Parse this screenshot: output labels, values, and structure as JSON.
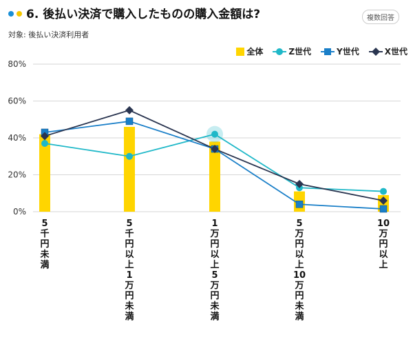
{
  "header": {
    "title": "6. 後払い決済で購入したものの購入金額は?",
    "subtitle": "対象: 後払い決済利用者",
    "badge": "複数回答",
    "dot_colors": [
      "#1a8fd6",
      "#f5c800"
    ]
  },
  "chart_data": {
    "type": "bar+line",
    "categories": [
      "5千円未満",
      "5千円以上1万円未満",
      "1万円以上5万円未満",
      "5万円以上10万円未満",
      "10万円以上"
    ],
    "yticks": [
      "0%",
      "20%",
      "40%",
      "60%",
      "80%"
    ],
    "ylim": [
      0,
      80
    ],
    "grid": true,
    "legend_position": "top-right",
    "series": [
      {
        "name": "全体",
        "kind": "bar",
        "color": "#ffd500",
        "values": [
          42,
          46,
          38,
          11,
          9
        ]
      },
      {
        "name": "Z世代",
        "kind": "line",
        "marker": "circle",
        "color": "#1fb8c8",
        "values": [
          37,
          30,
          42,
          13,
          11
        ]
      },
      {
        "name": "Y世代",
        "kind": "line",
        "marker": "square",
        "color": "#1a7fc8",
        "values": [
          43,
          49,
          34,
          4,
          1.5
        ]
      },
      {
        "name": "X世代",
        "kind": "line",
        "marker": "diamond",
        "color": "#2a3550",
        "values": [
          41,
          55,
          34,
          15,
          6
        ]
      }
    ]
  }
}
